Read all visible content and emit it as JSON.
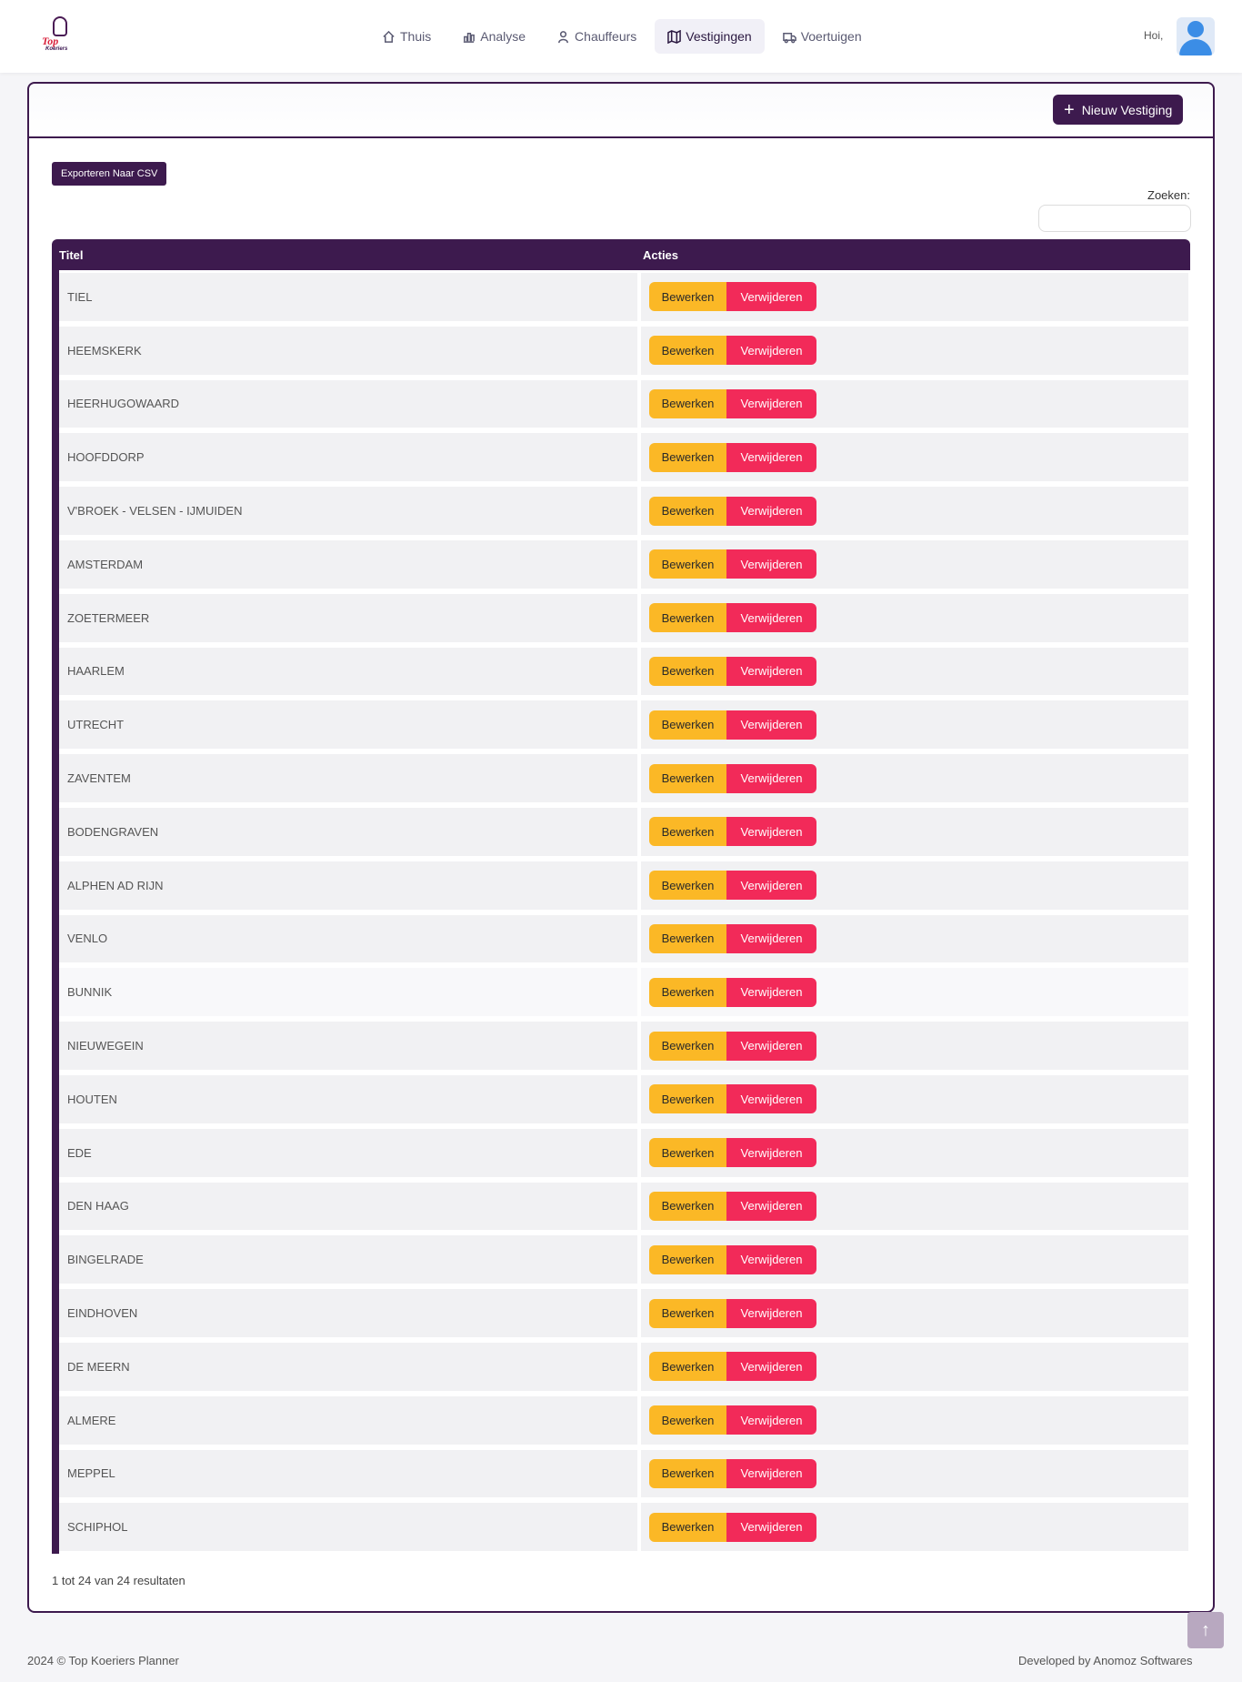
{
  "brand": {
    "logo_top": "Top",
    "logo_sub": "Koeriers"
  },
  "nav": [
    {
      "label": "Thuis",
      "icon": "home-icon"
    },
    {
      "label": "Analyse",
      "icon": "chart-icon"
    },
    {
      "label": "Chauffeurs",
      "icon": "user-icon"
    },
    {
      "label": "Vestigingen",
      "icon": "map-icon",
      "active": true
    },
    {
      "label": "Voertuigen",
      "icon": "truck-icon"
    }
  ],
  "user": {
    "greeting": "Hoi,"
  },
  "toolbar": {
    "new_label": "Nieuw Vestiging",
    "csv_label": "Exporteren Naar CSV",
    "search_label": "Zoeken:",
    "search_value": ""
  },
  "table": {
    "headers": {
      "title": "Titel",
      "actions": "Acties"
    },
    "edit_label": "Bewerken",
    "delete_label": "Verwijderen",
    "rows": [
      "TIEL",
      "HEEMSKERK",
      "HEERHUGOWAARD",
      "HOOFDDORP",
      "V'BROEK - VELSEN - IJMUIDEN",
      "AMSTERDAM",
      "ZOETERMEER",
      "HAARLEM",
      "UTRECHT",
      "ZAVENTEM",
      "BODENGRAVEN",
      "ALPHEN AD RIJN",
      "VENLO",
      "BUNNIK",
      "NIEUWEGEIN",
      "HOUTEN",
      "EDE",
      "DEN HAAG",
      "BINGELRADE",
      "EINDHOVEN",
      "DE MEERN",
      "ALMERE",
      "MEPPEL",
      "SCHIPHOL"
    ]
  },
  "pager": {
    "info": "1 tot 24 van 24 resultaten"
  },
  "footer": {
    "left": "2024  © Top Koeriers Planner",
    "right": "Developed by Anomoz Softwares"
  },
  "colors": {
    "primary": "#3d1a4e",
    "edit": "#fbb826",
    "delete": "#f22a59"
  }
}
